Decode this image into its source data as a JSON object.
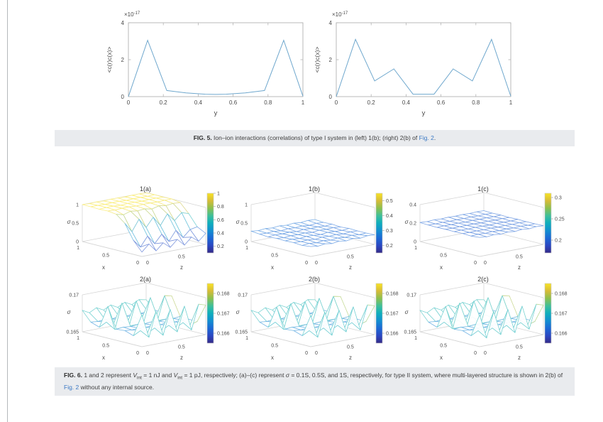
{
  "page": {
    "background": "#ffffff",
    "left_border_color": "#b4b8bc",
    "caption_bg": "#e9ebee",
    "link_color": "#3b79c4",
    "tick_color": "#4a4a4a",
    "axis_color": "#b3b3b3",
    "line_color": "#6ea7cd"
  },
  "fig5": {
    "caption_parts": [
      {
        "t": "FIG. 5.",
        "b": true
      },
      {
        "t": " Ion–ion interactions (correlations) of type I system in (left) 1(b); (right) 2(b) of "
      },
      {
        "t": "Fig. 2",
        "link": true
      },
      {
        "t": "."
      }
    ]
  },
  "fig6": {
    "caption_parts": [
      {
        "t": "FIG. 6.",
        "b": true
      },
      {
        "t": " 1 and 2 represent "
      },
      {
        "t": "V",
        "i": true
      },
      {
        "t": "int",
        "sub": true
      },
      {
        "t": " = 1 nJ and "
      },
      {
        "t": "V",
        "i": true
      },
      {
        "t": "int",
        "sub": true
      },
      {
        "t": " = 1 pJ, respectively; (a)–(c) represent "
      },
      {
        "t": "σ",
        "i": true
      },
      {
        "t": " = 0.1S, 0.5S, and 1S, respectively, for type II system, where multi-layered structure is shown in 2(b) of "
      },
      {
        "t": "Fig. 2",
        "link": true
      },
      {
        "t": " without any internal source."
      }
    ]
  },
  "chart_data": [
    {
      "id": "fig5_left",
      "type": "line",
      "ylabel": "<c(r)c(x)>",
      "xlabel": "y",
      "exponent": "×10",
      "exponent_sup": "-17",
      "xlim": [
        0,
        1
      ],
      "ylim": [
        0,
        4
      ],
      "xticks": [
        0,
        0.2,
        0.4,
        0.6,
        0.8,
        1
      ],
      "yticks": [
        0,
        2,
        4
      ],
      "x": [
        0,
        0.11,
        0.22,
        0.33,
        0.44,
        0.5,
        0.56,
        0.67,
        0.78,
        0.89,
        1
      ],
      "y": [
        0,
        3.05,
        0.33,
        0.2,
        0.13,
        0.12,
        0.13,
        0.2,
        0.33,
        3.05,
        0.02
      ]
    },
    {
      "id": "fig5_right",
      "type": "line",
      "ylabel": "<c(r)c(x)>",
      "xlabel": "y",
      "exponent": "×10",
      "exponent_sup": "-17",
      "xlim": [
        0,
        1
      ],
      "ylim": [
        0,
        4
      ],
      "xticks": [
        0,
        0.2,
        0.4,
        0.6,
        0.8,
        1
      ],
      "yticks": [
        0,
        2,
        4
      ],
      "x": [
        0,
        0.11,
        0.22,
        0.33,
        0.44,
        0.56,
        0.67,
        0.78,
        0.89,
        1
      ],
      "y": [
        0,
        3.1,
        0.85,
        1.5,
        0.13,
        0.13,
        1.5,
        0.85,
        3.1,
        0.02
      ]
    },
    {
      "id": "s1a",
      "type": "surface",
      "title": "1(a)",
      "xlabel": "x",
      "ylabel": "z",
      "zlabel": "σ",
      "zlim": [
        0,
        1
      ],
      "zticks": [
        0,
        0.5,
        1
      ],
      "xticks": [
        1,
        0.5,
        0
      ],
      "yticks": [
        0,
        0.5
      ],
      "colorbar": {
        "range": [
          0.1,
          1
        ],
        "ticks": [
          1,
          0.8,
          0.6,
          0.4,
          0.2
        ]
      },
      "grid": [
        [
          0.12,
          0.3,
          0.08,
          0.26,
          0.1,
          0.28,
          0.09,
          0.27,
          0.12,
          0.3
        ],
        [
          0.38,
          0.16,
          0.42,
          0.18,
          0.4,
          0.17,
          0.43,
          0.2,
          0.38,
          0.42
        ],
        [
          0.78,
          0.52,
          0.82,
          0.56,
          0.8,
          0.54,
          0.82,
          0.6,
          0.78,
          0.72
        ],
        [
          0.97,
          0.92,
          0.98,
          0.95,
          0.97,
          0.93,
          0.98,
          0.95,
          0.97,
          0.96
        ],
        [
          1,
          0.99,
          1,
          1,
          0.99,
          1,
          1,
          0.99,
          1,
          1
        ],
        [
          0.99,
          1,
          1,
          0.99,
          1,
          1,
          0.99,
          1,
          1,
          0.99
        ],
        [
          1,
          1,
          0.99,
          1,
          1,
          0.99,
          1,
          1,
          0.99,
          1
        ],
        [
          1,
          0.99,
          1,
          0.99,
          1,
          1,
          0.99,
          1,
          1,
          0.99
        ]
      ]
    },
    {
      "id": "s1b",
      "type": "surface",
      "title": "1(b)",
      "xlabel": "x",
      "ylabel": "z",
      "zlabel": "σ",
      "zlim": [
        0,
        1
      ],
      "zticks": [
        0,
        0.5,
        1
      ],
      "xticks": [
        1,
        0.5,
        0
      ],
      "yticks": [
        0,
        0.5
      ],
      "colorbar": {
        "range": [
          0.15,
          0.55
        ],
        "ticks": [
          0.5,
          0.4,
          0.3,
          0.2
        ]
      },
      "grid": [
        [
          0.27,
          0.24,
          0.27,
          0.24,
          0.27,
          0.24,
          0.27,
          0.24,
          0.27,
          0.26
        ],
        [
          0.24,
          0.26,
          0.24,
          0.26,
          0.24,
          0.26,
          0.24,
          0.26,
          0.24,
          0.25
        ],
        [
          0.26,
          0.25,
          0.26,
          0.24,
          0.26,
          0.25,
          0.26,
          0.24,
          0.26,
          0.25
        ],
        [
          0.25,
          0.26,
          0.24,
          0.26,
          0.25,
          0.24,
          0.26,
          0.25,
          0.24,
          0.26
        ],
        [
          0.26,
          0.24,
          0.26,
          0.25,
          0.26,
          0.24,
          0.26,
          0.25,
          0.26,
          0.24
        ],
        [
          0.24,
          0.26,
          0.25,
          0.26,
          0.24,
          0.26,
          0.25,
          0.26,
          0.24,
          0.26
        ],
        [
          0.26,
          0.25,
          0.26,
          0.24,
          0.26,
          0.25,
          0.26,
          0.24,
          0.26,
          0.25
        ],
        [
          0.28,
          0.26,
          0.28,
          0.26,
          0.28,
          0.26,
          0.28,
          0.26,
          0.28,
          0.27
        ]
      ]
    },
    {
      "id": "s1c",
      "type": "surface",
      "title": "1(c)",
      "xlabel": "x",
      "ylabel": "z",
      "zlabel": "σ",
      "zlim": [
        0,
        0.4
      ],
      "zticks": [
        0,
        0.2,
        0.4
      ],
      "xticks": [
        1,
        0.5,
        0
      ],
      "yticks": [
        0,
        0.5
      ],
      "colorbar": {
        "range": [
          0.17,
          0.31
        ],
        "ticks": [
          0.3,
          0.25,
          0.2
        ]
      },
      "grid": [
        [
          0.207,
          0.198,
          0.206,
          0.198,
          0.207,
          0.198,
          0.206,
          0.198,
          0.207,
          0.202
        ],
        [
          0.198,
          0.203,
          0.198,
          0.203,
          0.198,
          0.203,
          0.198,
          0.203,
          0.198,
          0.2
        ],
        [
          0.203,
          0.199,
          0.202,
          0.199,
          0.203,
          0.199,
          0.202,
          0.199,
          0.203,
          0.2
        ],
        [
          0.2,
          0.202,
          0.199,
          0.202,
          0.2,
          0.199,
          0.202,
          0.2,
          0.199,
          0.202
        ],
        [
          0.202,
          0.199,
          0.202,
          0.2,
          0.202,
          0.199,
          0.202,
          0.2,
          0.202,
          0.199
        ],
        [
          0.199,
          0.202,
          0.2,
          0.202,
          0.199,
          0.202,
          0.2,
          0.202,
          0.199,
          0.202
        ],
        [
          0.202,
          0.2,
          0.202,
          0.199,
          0.202,
          0.2,
          0.202,
          0.199,
          0.202,
          0.2
        ],
        [
          0.206,
          0.202,
          0.206,
          0.202,
          0.206,
          0.202,
          0.206,
          0.202,
          0.206,
          0.204
        ]
      ]
    },
    {
      "id": "s2a",
      "type": "surface",
      "title": "2(a)",
      "xlabel": "x",
      "ylabel": "z",
      "zlabel": "σ",
      "zlim": [
        0.165,
        0.17
      ],
      "zticks": [
        0.165,
        0.17
      ],
      "xticks": [
        1,
        0.5,
        0
      ],
      "yticks": [
        0,
        0.5
      ],
      "colorbar": {
        "range": [
          0.1655,
          0.1685
        ],
        "ticks": [
          0.168,
          0.167,
          0.166
        ]
      },
      "grid": [
        [
          0.1693,
          0.1661,
          0.1694,
          0.166,
          0.1693,
          0.1661,
          0.1694,
          0.166,
          0.1693,
          0.169
        ],
        [
          0.1662,
          0.1667,
          0.1662,
          0.1667,
          0.1662,
          0.1667,
          0.1662,
          0.1667,
          0.1662,
          0.1665
        ],
        [
          0.1666,
          0.1665,
          0.1666,
          0.1665,
          0.1666,
          0.1665,
          0.1666,
          0.1665,
          0.1666,
          0.1665
        ],
        [
          0.1665,
          0.1666,
          0.1665,
          0.1666,
          0.1665,
          0.1666,
          0.1665,
          0.1666,
          0.1665,
          0.1666
        ],
        [
          0.1693,
          0.166,
          0.1694,
          0.1661,
          0.1693,
          0.166,
          0.1694,
          0.1661,
          0.1693,
          0.1691
        ],
        [
          0.1662,
          0.1667,
          0.1663,
          0.1666,
          0.1662,
          0.1667,
          0.1663,
          0.1666,
          0.1662,
          0.1665
        ],
        [
          0.1666,
          0.1665,
          0.1666,
          0.1665,
          0.1666,
          0.1665,
          0.1666,
          0.1665,
          0.1666,
          0.1666
        ],
        [
          0.1679,
          0.1674,
          0.1679,
          0.1674,
          0.1679,
          0.1674,
          0.1679,
          0.1674,
          0.1679,
          0.1677
        ]
      ]
    },
    {
      "id": "s2b",
      "type": "surface",
      "title": "2(b)",
      "xlabel": "x",
      "ylabel": "z",
      "zlabel": "σ",
      "zlim": [
        0.165,
        0.17
      ],
      "zticks": [
        0.165,
        0.17
      ],
      "xticks": [
        1,
        0.5,
        0
      ],
      "yticks": [
        0,
        0.5
      ],
      "colorbar": {
        "range": [
          0.1655,
          0.1685
        ],
        "ticks": [
          0.168,
          0.167,
          0.166
        ]
      },
      "grid": [
        [
          0.1692,
          0.1661,
          0.1693,
          0.166,
          0.1692,
          0.1661,
          0.1693,
          0.166,
          0.1692,
          0.1689
        ],
        [
          0.1662,
          0.1667,
          0.1662,
          0.1667,
          0.1662,
          0.1667,
          0.1662,
          0.1667,
          0.1662,
          0.1665
        ],
        [
          0.1666,
          0.1665,
          0.1666,
          0.1665,
          0.1666,
          0.1665,
          0.1666,
          0.1665,
          0.1666,
          0.1665
        ],
        [
          0.1665,
          0.1666,
          0.1665,
          0.1666,
          0.1665,
          0.1666,
          0.1665,
          0.1666,
          0.1665,
          0.1666
        ],
        [
          0.1692,
          0.166,
          0.1693,
          0.1661,
          0.1692,
          0.166,
          0.1693,
          0.1661,
          0.1692,
          0.169
        ],
        [
          0.1662,
          0.1667,
          0.1663,
          0.1666,
          0.1662,
          0.1667,
          0.1663,
          0.1666,
          0.1662,
          0.1665
        ],
        [
          0.1666,
          0.1665,
          0.1666,
          0.1665,
          0.1666,
          0.1665,
          0.1666,
          0.1665,
          0.1666,
          0.1666
        ],
        [
          0.1679,
          0.1674,
          0.1679,
          0.1674,
          0.1679,
          0.1674,
          0.1679,
          0.1674,
          0.1679,
          0.1677
        ]
      ]
    },
    {
      "id": "s2c",
      "type": "surface",
      "title": "2(c)",
      "xlabel": "x",
      "ylabel": "z",
      "zlabel": "σ",
      "zlim": [
        0.165,
        0.17
      ],
      "zticks": [
        0.165,
        0.17
      ],
      "xticks": [
        1,
        0.5,
        0
      ],
      "yticks": [
        0,
        0.5
      ],
      "colorbar": {
        "range": [
          0.1655,
          0.1685
        ],
        "ticks": [
          0.168,
          0.167,
          0.166
        ]
      },
      "grid": [
        [
          0.1693,
          0.166,
          0.1694,
          0.1661,
          0.1693,
          0.166,
          0.1694,
          0.1661,
          0.1693,
          0.169
        ],
        [
          0.1662,
          0.1667,
          0.1662,
          0.1667,
          0.1662,
          0.1667,
          0.1662,
          0.1667,
          0.1662,
          0.1665
        ],
        [
          0.1666,
          0.1665,
          0.1666,
          0.1665,
          0.1666,
          0.1665,
          0.1666,
          0.1665,
          0.1666,
          0.1665
        ],
        [
          0.1665,
          0.1666,
          0.1665,
          0.1666,
          0.1665,
          0.1666,
          0.1665,
          0.1666,
          0.1665,
          0.1666
        ],
        [
          0.1693,
          0.1661,
          0.1694,
          0.166,
          0.1693,
          0.1661,
          0.1694,
          0.166,
          0.1693,
          0.1691
        ],
        [
          0.1662,
          0.1667,
          0.1663,
          0.1666,
          0.1662,
          0.1667,
          0.1663,
          0.1666,
          0.1662,
          0.1665
        ],
        [
          0.1666,
          0.1665,
          0.1666,
          0.1665,
          0.1666,
          0.1665,
          0.1666,
          0.1665,
          0.1666,
          0.1666
        ],
        [
          0.1679,
          0.1674,
          0.1679,
          0.1674,
          0.1679,
          0.1674,
          0.1679,
          0.1674,
          0.1679,
          0.1677
        ]
      ]
    }
  ]
}
